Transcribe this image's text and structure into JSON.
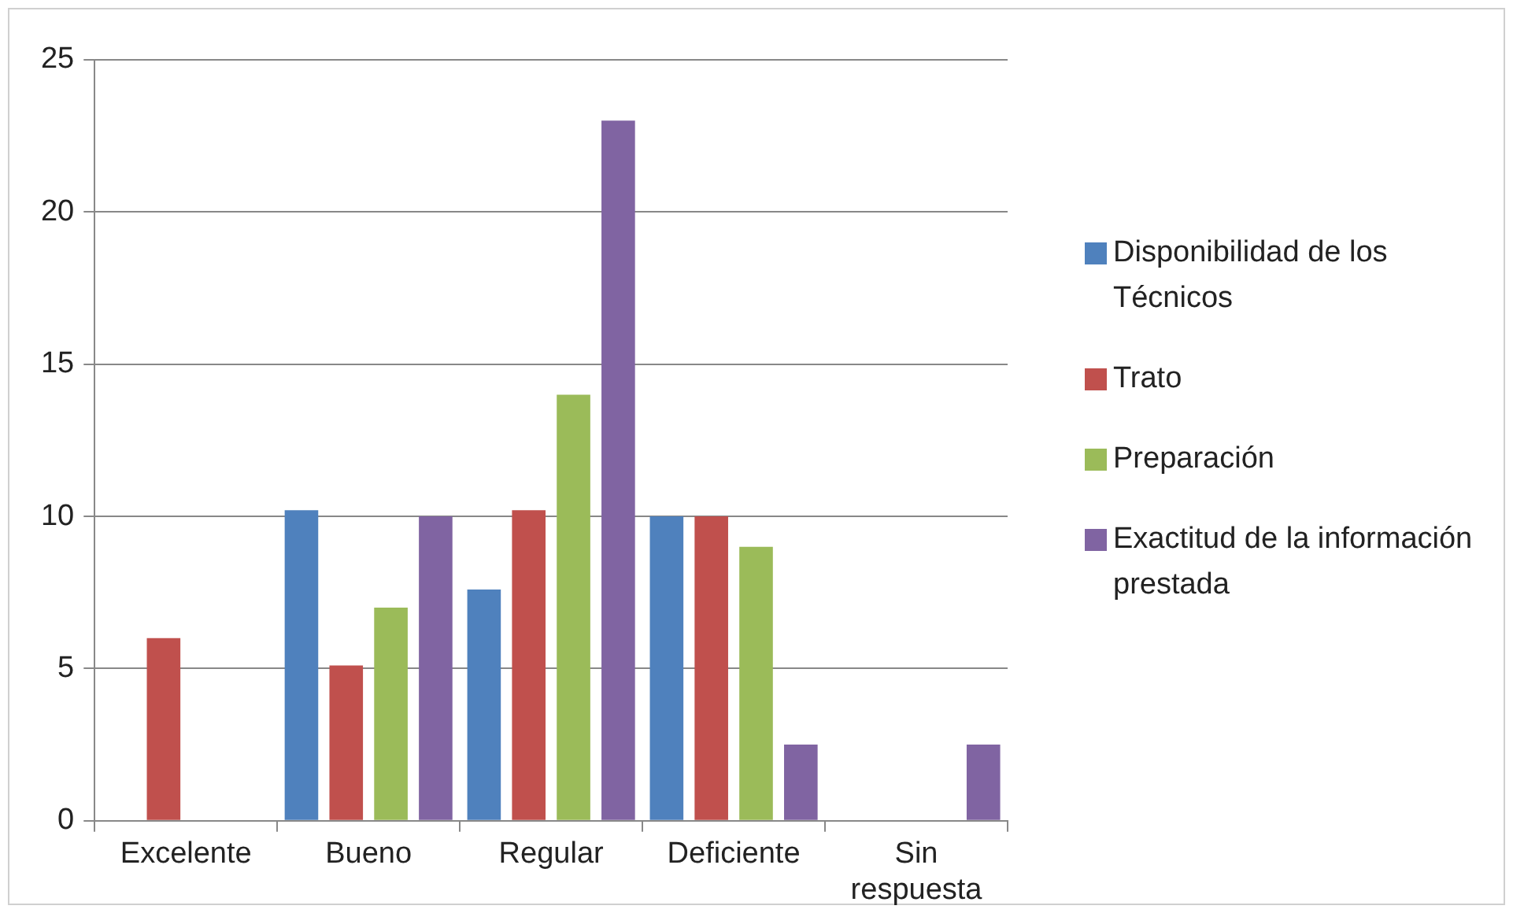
{
  "chart_data": {
    "type": "bar",
    "categories": [
      "Excelente",
      "Bueno",
      "Regular",
      "Deficiente",
      "Sin respuesta"
    ],
    "series": [
      {
        "name": "Disponibilidad de los Técnicos",
        "color": "#4f81bd",
        "values": [
          0,
          10.2,
          7.6,
          10,
          0
        ]
      },
      {
        "name": "Trato",
        "color": "#c0504d",
        "values": [
          6,
          5.1,
          10.2,
          10,
          0
        ]
      },
      {
        "name": "Preparación",
        "color": "#9bbb59",
        "values": [
          0,
          7,
          14,
          9,
          0
        ]
      },
      {
        "name": "Exactitud de la información prestada",
        "color": "#8064a2",
        "values": [
          0,
          10,
          23,
          2.5,
          2.5
        ]
      }
    ],
    "ylim": [
      0,
      25
    ],
    "yticks": [
      0,
      5,
      10,
      15,
      20,
      25
    ],
    "grid": "y",
    "legend": "right"
  }
}
